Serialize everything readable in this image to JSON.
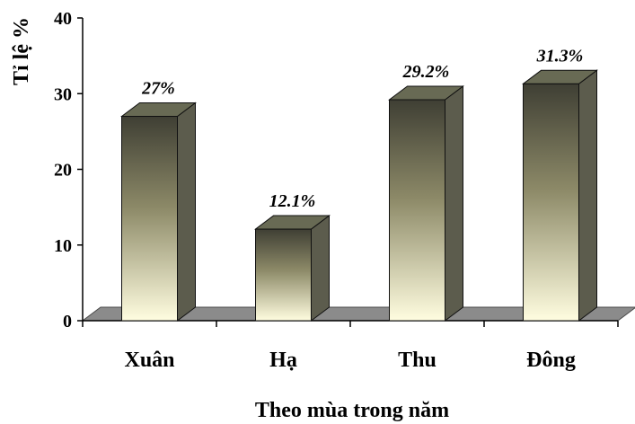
{
  "chart_data": {
    "type": "bar",
    "title": "",
    "xlabel": "Theo mùa trong năm",
    "ylabel": "Tỉ lệ %",
    "categories": [
      "Xuân",
      "Hạ",
      "Thu",
      "Đông"
    ],
    "values": [
      27,
      12.1,
      29.2,
      31.3
    ],
    "data_labels": [
      "27%",
      "12.1%",
      "29.2%",
      "31.3%"
    ],
    "ylim": [
      0,
      40
    ],
    "yticks": [
      0,
      10,
      20,
      30,
      40
    ],
    "ytick_labels": [
      "0",
      "10",
      "20",
      "30",
      "40"
    ],
    "grid": false,
    "legend": "none",
    "style": "3d-column",
    "colors": {
      "bar_gradient_top": "#3f3f34",
      "bar_gradient_mid": "#8d8a68",
      "bar_gradient_bottom": "#fffde0",
      "bar_side": "#5c5c4d",
      "bar_top": "#686a54",
      "floor": "#8b8b8b",
      "axis": "#000000",
      "text": "#000000"
    }
  }
}
